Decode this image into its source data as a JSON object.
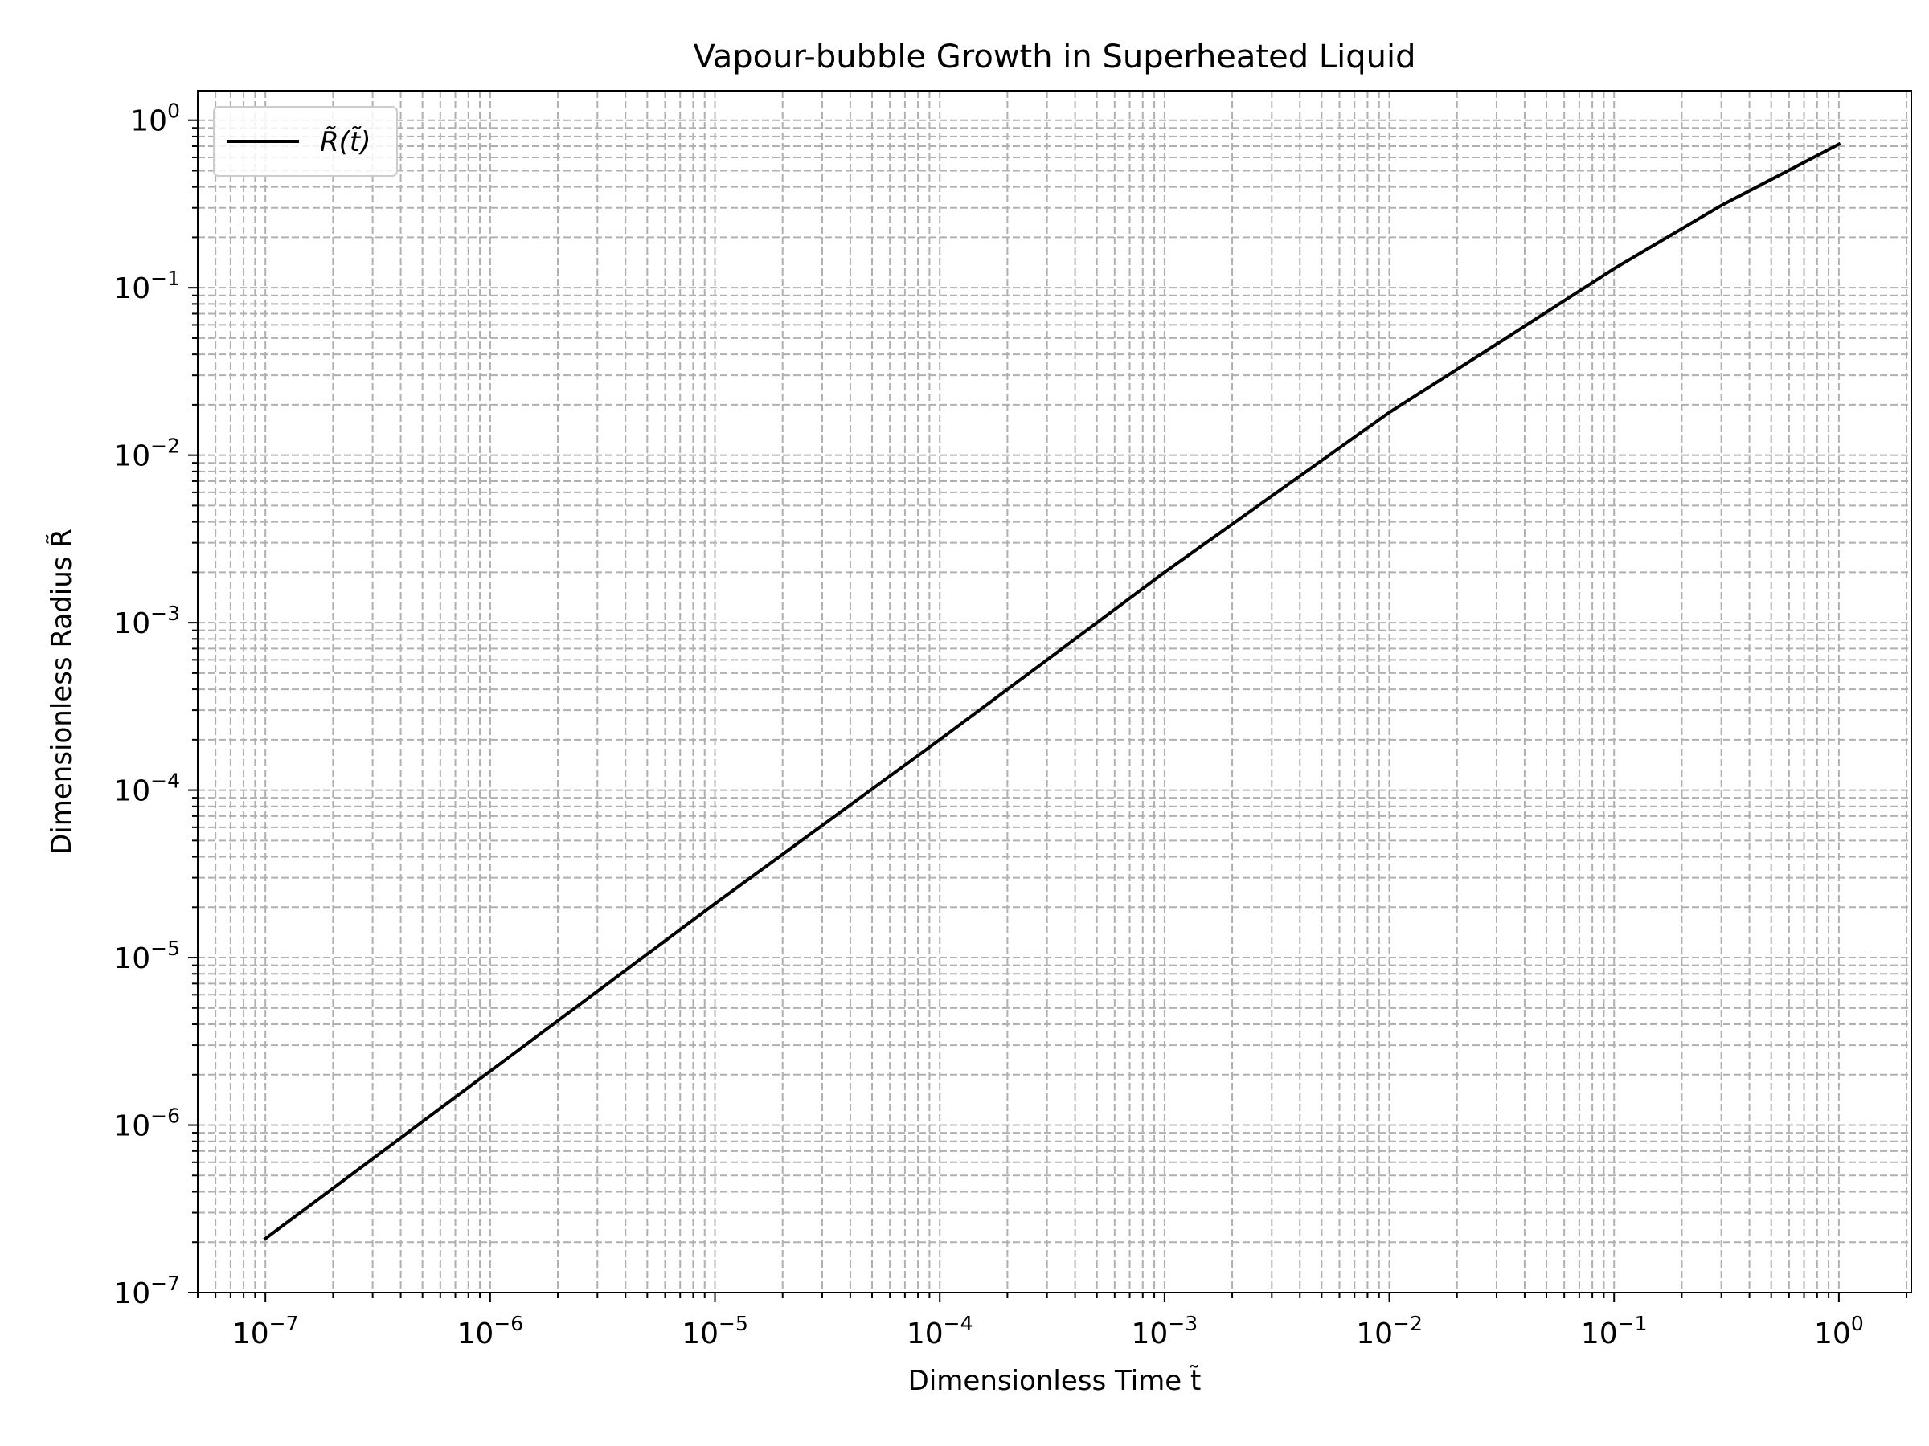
{
  "chart_data": {
    "type": "line",
    "title": "Vapour-bubble Growth in Superheated Liquid",
    "xlabel": "Dimensionless Time t̃",
    "ylabel": "Dimensionless Radius R̃",
    "xscale": "log",
    "yscale": "log",
    "xlim": [
      5e-08,
      2.1
    ],
    "ylim": [
      1e-07,
      1.5
    ],
    "grid": true,
    "grid_style": "dashed",
    "legend_position": "upper-left",
    "x_tick_labels": [
      {
        "base": "10",
        "exp": "−7",
        "value": 1e-07
      },
      {
        "base": "10",
        "exp": "−6",
        "value": 1e-06
      },
      {
        "base": "10",
        "exp": "−5",
        "value": 1e-05
      },
      {
        "base": "10",
        "exp": "−4",
        "value": 0.0001
      },
      {
        "base": "10",
        "exp": "−3",
        "value": 0.001
      },
      {
        "base": "10",
        "exp": "−2",
        "value": 0.01
      },
      {
        "base": "10",
        "exp": "−1",
        "value": 0.1
      },
      {
        "base": "10",
        "exp": "0",
        "value": 1
      }
    ],
    "y_tick_labels": [
      {
        "base": "10",
        "exp": "−7",
        "value": 1e-07
      },
      {
        "base": "10",
        "exp": "−6",
        "value": 1e-06
      },
      {
        "base": "10",
        "exp": "−5",
        "value": 1e-05
      },
      {
        "base": "10",
        "exp": "−4",
        "value": 0.0001
      },
      {
        "base": "10",
        "exp": "−3",
        "value": 0.001
      },
      {
        "base": "10",
        "exp": "−2",
        "value": 0.01
      },
      {
        "base": "10",
        "exp": "−1",
        "value": 0.1
      },
      {
        "base": "10",
        "exp": "0",
        "value": 1
      }
    ],
    "series": [
      {
        "name": "R̃(t̃)",
        "color": "#000000",
        "x": [
          1e-07,
          1e-06,
          1e-05,
          0.0001,
          0.001,
          0.01,
          0.03,
          0.1,
          0.3,
          1
        ],
        "y": [
          2.1e-07,
          2.1e-06,
          2.1e-05,
          0.0002,
          0.002,
          0.018,
          0.046,
          0.13,
          0.31,
          0.72
        ]
      }
    ]
  }
}
